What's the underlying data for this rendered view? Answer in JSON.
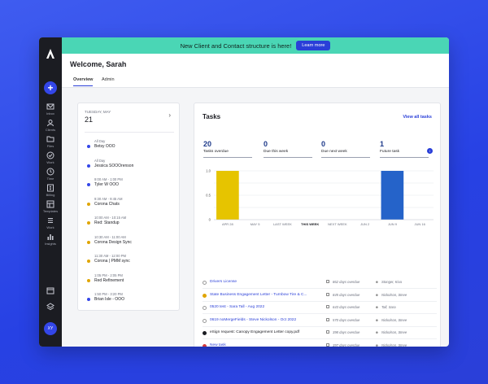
{
  "banner": {
    "text": "New Client and Contact structure is here!",
    "button": "Learn more"
  },
  "header": {
    "welcome": "Welcome, Sarah",
    "tabs": [
      "Overview",
      "Admin"
    ]
  },
  "sidebar": {
    "items": [
      {
        "label": "Inbox",
        "icon": "inbox-icon"
      },
      {
        "label": "Clients",
        "icon": "clients-icon"
      },
      {
        "label": "Files",
        "icon": "files-icon"
      },
      {
        "label": "Work",
        "icon": "work-icon"
      },
      {
        "label": "Time",
        "icon": "time-icon"
      },
      {
        "label": "Billing",
        "icon": "billing-icon"
      },
      {
        "label": "Templates",
        "icon": "templates-icon"
      },
      {
        "label": "Work",
        "icon": "work-list-icon"
      },
      {
        "label": "Insights",
        "icon": "insights-icon"
      }
    ],
    "avatar": "XY"
  },
  "calendar": {
    "weekday": "TUESDAY, MAY",
    "day": "21",
    "events": [
      {
        "time": "All Day",
        "name": "Betsy OOO",
        "color": "#3346e8"
      },
      {
        "time": "All Day",
        "name": "Jessica SOOOrenson",
        "color": "#3346e8"
      },
      {
        "time": "9:00 AM - 1:00 PM",
        "name": "Tyler W OOO",
        "color": "#3346e8"
      },
      {
        "time": "9:30 AM - 9:45 AM",
        "name": "Corona Chats",
        "color": "#e0a500"
      },
      {
        "time": "10:00 AM - 10:15 AM",
        "name": "Red: Standup",
        "color": "#e0a500"
      },
      {
        "time": "10:30 AM - 11:00 AM",
        "name": "Corona Design Sync",
        "color": "#e0a500"
      },
      {
        "time": "11:30 AM - 12:00 PM",
        "name": "Corona | PMM sync",
        "color": "#e0a500"
      },
      {
        "time": "1:05 PM - 2:05 PM",
        "name": "Red Refinement",
        "color": "#e0a500"
      },
      {
        "time": "1:50 PM - 3:20 PM",
        "name": "Brian Isle - OOO",
        "color": "#3346e8"
      }
    ]
  },
  "tasks": {
    "title": "Tasks",
    "view_all": "View all tasks",
    "stats": [
      {
        "value": "20",
        "label": "Tasks overdue"
      },
      {
        "value": "0",
        "label": "Due this week"
      },
      {
        "value": "0",
        "label": "Due next week"
      },
      {
        "value": "1",
        "label": "Future task"
      }
    ],
    "rows": [
      {
        "title": "Drivers License",
        "overdue": "862 days overdue",
        "assignee": "Stonger, Kiva",
        "status": "#ffffff",
        "status_border": "#999",
        "link": true
      },
      {
        "title": "State Business Engagement Letter - Turnbow Tire & C...",
        "overdue": "845 days overdue",
        "assignee": "Nickolson, Steve",
        "status": "#e0a500",
        "status_border": "#e0a500",
        "link": true
      },
      {
        "title": "0520 test - Sara Tall - Aug 2022",
        "overdue": "643 days overdue",
        "assignee": "Tall, Sara",
        "status": "#ffffff",
        "status_border": "#999",
        "link": true
      },
      {
        "title": "0619 noMergeFields - Steve Nickolson - Oct 2022",
        "overdue": "570 days overdue",
        "assignee": "Nickolson, Steve",
        "status": "#ffffff",
        "status_border": "#999",
        "link": true
      },
      {
        "title": "eSign request: Canopy Engagement Letter copy.pdf",
        "overdue": "398 days overdue",
        "assignee": "Nickolson, Steve",
        "status": "#1b1c22",
        "status_border": "#1b1c22",
        "link": false
      },
      {
        "title": "New task",
        "overdue": "397 days overdue",
        "assignee": "Nickolson, Steve",
        "status": "#d43b3b",
        "status_border": "#d43b3b",
        "link": true
      },
      {
        "title": "eSign request: combinedbnbm-file.pdf",
        "overdue": "384 days overdue",
        "assignee": "Nickolson, Steve",
        "status": "#3346e8",
        "status_border": "#3346e8",
        "link": false
      },
      {
        "title": "09/23",
        "overdue": "347 days overdue",
        "assignee": "Olsten, Josh",
        "status": "#ffffff",
        "status_border": "#999",
        "link": true
      }
    ]
  },
  "chart_data": {
    "type": "bar",
    "title": "",
    "categories": [
      "APR 28",
      "MAY 5",
      "LAST WEEK",
      "THIS WEEK",
      "NEXT WEEK",
      "JUN 2",
      "JUN 9",
      "JUN 16"
    ],
    "ylim": [
      0,
      1.0
    ],
    "y_ticks": [
      "1.0",
      "0.5",
      "0"
    ],
    "series": [
      {
        "values": [
          1.0,
          0,
          0,
          0,
          0,
          0,
          1.0,
          0
        ]
      }
    ],
    "bar_colors": [
      "#e6c400",
      "#e6c400",
      "#e6c400",
      "#e6c400",
      "#e6c400",
      "#e6c400",
      "#2563c9",
      "#2563c9"
    ],
    "highlight_category": "THIS WEEK",
    "grid": true
  }
}
